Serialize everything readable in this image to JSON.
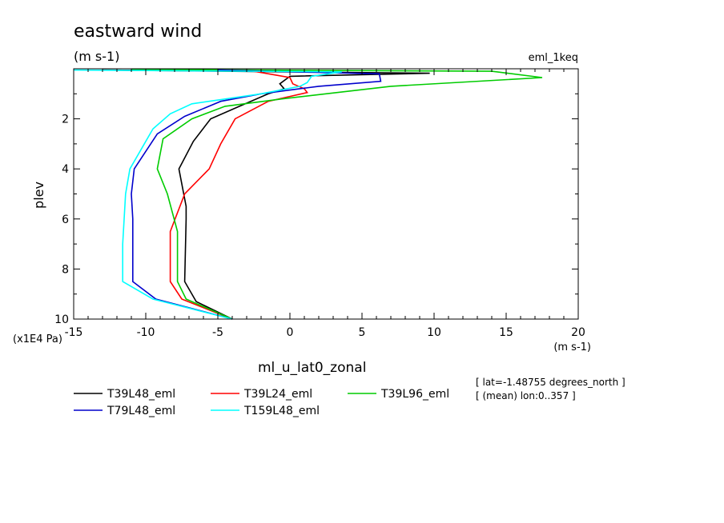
{
  "header": {
    "title": "eastward wind",
    "units": "(m s-1)",
    "dataset": "eml_1keq"
  },
  "chart_data": {
    "type": "line",
    "title": "eastward wind",
    "xlabel": "ml_u_lat0_zonal",
    "xunits": "(m s-1)",
    "ylabel": "plev",
    "yunits": "(x1E4 Pa)",
    "xlim": [
      -15,
      20
    ],
    "ylim": [
      10,
      0
    ],
    "y_inverted": true,
    "xticks": [
      -15,
      -10,
      -5,
      0,
      5,
      10,
      15,
      20
    ],
    "yticks": [
      2,
      4,
      6,
      8,
      10
    ],
    "info": [
      "[ lat=-1.48755 degrees_north ]",
      "[ (mean) lon:0..357 ]"
    ],
    "legend_position": "bottom",
    "series": [
      {
        "name": "T39L48_eml",
        "color": "#000000",
        "points": [
          [
            -13,
            0.05
          ],
          [
            9.7,
            0.18
          ],
          [
            0,
            0.3
          ],
          [
            -0.7,
            0.6
          ],
          [
            -0.4,
            0.8
          ],
          [
            -1.5,
            1.0
          ],
          [
            -3.5,
            1.5
          ],
          [
            -5.5,
            2.0
          ],
          [
            -6.7,
            2.9
          ],
          [
            -7.7,
            4.0
          ],
          [
            -7.2,
            5.5
          ],
          [
            -7.2,
            6.0
          ],
          [
            -7.3,
            8.5
          ],
          [
            -6.5,
            9.3
          ],
          [
            -4,
            10.0
          ]
        ]
      },
      {
        "name": "T39L24_eml",
        "color": "#ff0000",
        "points": [
          [
            -3,
            0.05
          ],
          [
            0,
            0.35
          ],
          [
            0.2,
            0.6
          ],
          [
            1.0,
            0.8
          ],
          [
            1.2,
            0.95
          ],
          [
            -1.5,
            1.3
          ],
          [
            -3.8,
            2.0
          ],
          [
            -4.8,
            3.0
          ],
          [
            -5.6,
            4.0
          ],
          [
            -7.3,
            5.0
          ],
          [
            -8.3,
            6.5
          ],
          [
            -8.3,
            8.5
          ],
          [
            -7.5,
            9.2
          ],
          [
            -4,
            10.0
          ]
        ]
      },
      {
        "name": "T39L96_eml",
        "color": "#00cc00",
        "points": [
          [
            -11,
            0.03
          ],
          [
            14,
            0.1
          ],
          [
            17.5,
            0.35
          ],
          [
            7,
            0.7
          ],
          [
            -0.5,
            1.2
          ],
          [
            -4.5,
            1.5
          ],
          [
            -6.8,
            2.0
          ],
          [
            -8.8,
            2.8
          ],
          [
            -9.2,
            4.0
          ],
          [
            -8.5,
            5.0
          ],
          [
            -7.8,
            6.5
          ],
          [
            -7.8,
            8.5
          ],
          [
            -7.2,
            9.2
          ],
          [
            -4,
            10.0
          ]
        ]
      },
      {
        "name": "T79L48_eml",
        "color": "#0000cc",
        "points": [
          [
            -5,
            0.05
          ],
          [
            6.2,
            0.2
          ],
          [
            6.3,
            0.5
          ],
          [
            2,
            0.7
          ],
          [
            -2,
            1.0
          ],
          [
            -4.8,
            1.3
          ],
          [
            -7.3,
            1.9
          ],
          [
            -9.2,
            2.6
          ],
          [
            -10.8,
            4.0
          ],
          [
            -11,
            5.0
          ],
          [
            -10.9,
            6.0
          ],
          [
            -10.9,
            8.5
          ],
          [
            -9.3,
            9.2
          ],
          [
            -4,
            10.0
          ]
        ]
      },
      {
        "name": "T159L48_eml",
        "color": "#00ffff",
        "points": [
          [
            -15,
            0.05
          ],
          [
            3.6,
            0.12
          ],
          [
            1.5,
            0.3
          ],
          [
            1.2,
            0.55
          ],
          [
            0.7,
            0.7
          ],
          [
            -2,
            1.0
          ],
          [
            -6.8,
            1.4
          ],
          [
            -8.3,
            1.8
          ],
          [
            -9.5,
            2.4
          ],
          [
            -11.1,
            4.0
          ],
          [
            -11.4,
            5.0
          ],
          [
            -11.5,
            6.0
          ],
          [
            -11.6,
            7.0
          ],
          [
            -11.6,
            8.5
          ],
          [
            -9.5,
            9.2
          ],
          [
            -4,
            10.0
          ]
        ]
      }
    ]
  }
}
